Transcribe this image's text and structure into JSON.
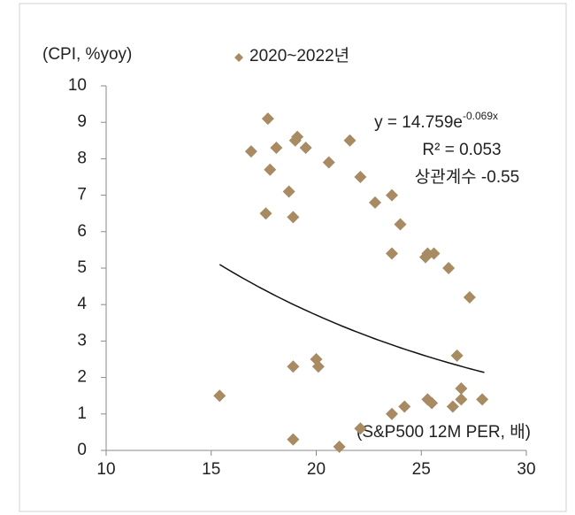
{
  "chart_data": {
    "type": "scatter",
    "ylabel": "(CPI, %yoy)",
    "xlabel": "(S&P500 12M PER, 배)",
    "xlim": [
      10,
      30
    ],
    "xticks": [
      10,
      15,
      20,
      25,
      30
    ],
    "ylim": [
      0,
      10
    ],
    "yticks": [
      0,
      1,
      2,
      3,
      4,
      5,
      6,
      7,
      8,
      9,
      10
    ],
    "series": [
      {
        "name": "2020~2022년",
        "color": "#a88a63",
        "x": [
          15.4,
          16.9,
          17.7,
          17.8,
          17.6,
          18.1,
          18.7,
          18.9,
          19.0,
          19.1,
          19.5,
          18.9,
          18.9,
          20.0,
          20.1,
          20.6,
          21.1,
          21.6,
          22.1,
          22.1,
          22.8,
          23.6,
          23.6,
          23.6,
          24.0,
          24.2,
          25.2,
          25.3,
          25.6,
          25.3,
          25.5,
          26.3,
          26.5,
          26.7,
          26.9,
          26.9,
          27.3,
          27.9
        ],
        "values": [
          1.5,
          8.2,
          9.1,
          7.7,
          6.5,
          8.3,
          7.1,
          6.4,
          8.5,
          8.6,
          8.3,
          2.3,
          0.3,
          2.5,
          2.3,
          7.9,
          0.1,
          8.5,
          7.5,
          0.6,
          6.8,
          7.0,
          5.4,
          1.0,
          6.2,
          1.2,
          5.3,
          5.4,
          5.4,
          1.4,
          1.3,
          5.0,
          1.2,
          2.6,
          1.7,
          1.4,
          4.2,
          1.4
        ]
      }
    ],
    "trendline": {
      "a": 14.759,
      "b": -0.069,
      "x_range": [
        15.4,
        28
      ]
    },
    "annotations": {
      "equation": "y = 14.759e",
      "equation_exp": "-0.069x",
      "r2": "R² = 0.053",
      "corr": "상관계수 -0.55"
    }
  }
}
